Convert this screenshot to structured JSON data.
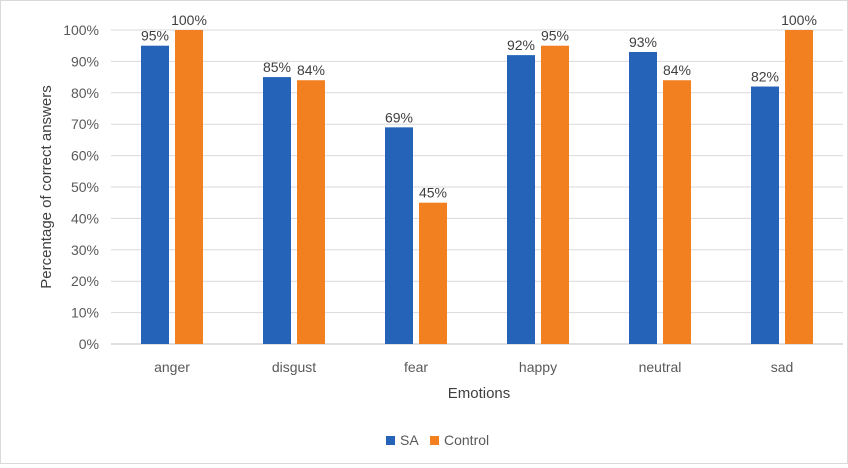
{
  "chart_data": {
    "type": "bar",
    "xlabel": "Emotions",
    "ylabel": "Percentage of correct answers",
    "ylim": [
      0,
      100
    ],
    "yticks": [
      0,
      10,
      20,
      30,
      40,
      50,
      60,
      70,
      80,
      90,
      100
    ],
    "ytick_labels": [
      "0%",
      "10%",
      "20%",
      "30%",
      "40%",
      "50%",
      "60%",
      "70%",
      "80%",
      "90%",
      "100%"
    ],
    "categories": [
      "anger",
      "disgust",
      "fear",
      "happy",
      "neutral",
      "sad"
    ],
    "series": [
      {
        "name": "SA",
        "color": "#2563b8",
        "values": [
          95,
          85,
          69,
          92,
          93,
          82
        ],
        "labels": [
          "95%",
          "85%",
          "69%",
          "92%",
          "93%",
          "82%"
        ]
      },
      {
        "name": "Control",
        "color": "#f28020",
        "values": [
          100,
          84,
          45,
          95,
          84,
          100
        ],
        "labels": [
          "100%",
          "84%",
          "45%",
          "95%",
          "84%",
          "100%"
        ]
      }
    ],
    "grid": true,
    "legend_position": "bottom"
  }
}
